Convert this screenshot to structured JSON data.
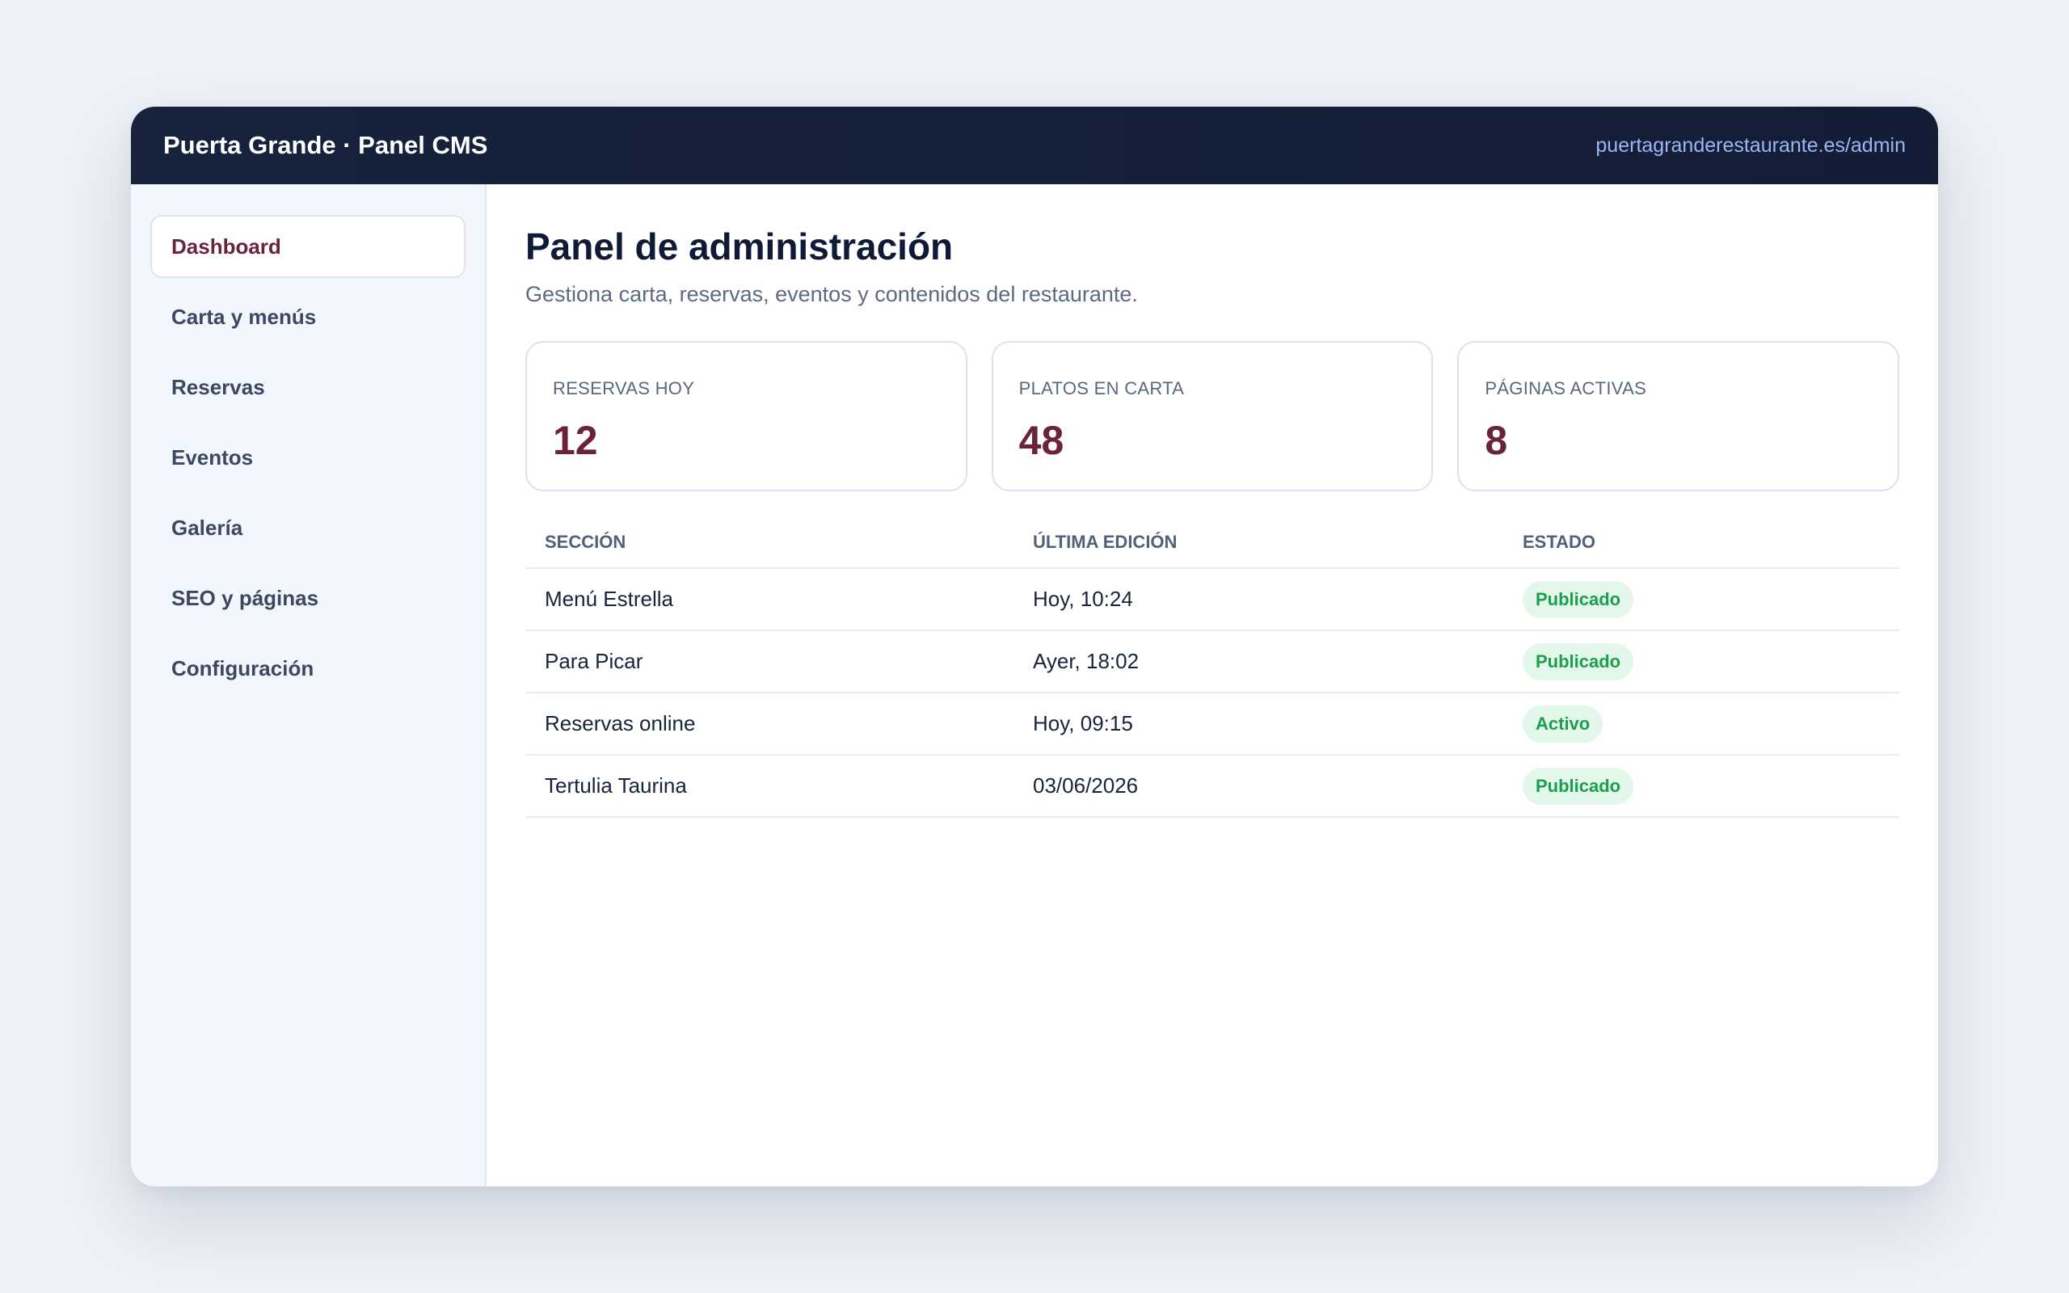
{
  "header": {
    "brand": "Puerta Grande · Panel CMS",
    "url": "puertagranderestaurante.es/admin"
  },
  "sidebar": {
    "items": [
      {
        "label": "Dashboard",
        "active": true
      },
      {
        "label": "Carta y menús"
      },
      {
        "label": "Reservas"
      },
      {
        "label": "Eventos"
      },
      {
        "label": "Galería"
      },
      {
        "label": "SEO y páginas"
      },
      {
        "label": "Configuración"
      }
    ]
  },
  "main": {
    "title": "Panel de administración",
    "subtitle": "Gestiona carta, reservas, eventos y contenidos del restaurante.",
    "stats": [
      {
        "label": "RESERVAS HOY",
        "value": "12"
      },
      {
        "label": "PLATOS EN CARTA",
        "value": "48"
      },
      {
        "label": "PÁGINAS ACTIVAS",
        "value": "8"
      }
    ],
    "table": {
      "headers": [
        "SECCIÓN",
        "ÚLTIMA EDICIÓN",
        "ESTADO"
      ],
      "rows": [
        {
          "section": "Menú Estrella",
          "edited": "Hoy, 10:24",
          "status": "Publicado"
        },
        {
          "section": "Para Picar",
          "edited": "Ayer, 18:02",
          "status": "Publicado"
        },
        {
          "section": "Reservas online",
          "edited": "Hoy, 09:15",
          "status": "Activo"
        },
        {
          "section": "Tertulia Taurina",
          "edited": "03/06/2026",
          "status": "Publicado"
        }
      ]
    }
  },
  "colors": {
    "topbar": "#131d36",
    "accent": "#6b2339",
    "status_green": "#1aa04c",
    "status_bg": "#e3f7ea"
  }
}
